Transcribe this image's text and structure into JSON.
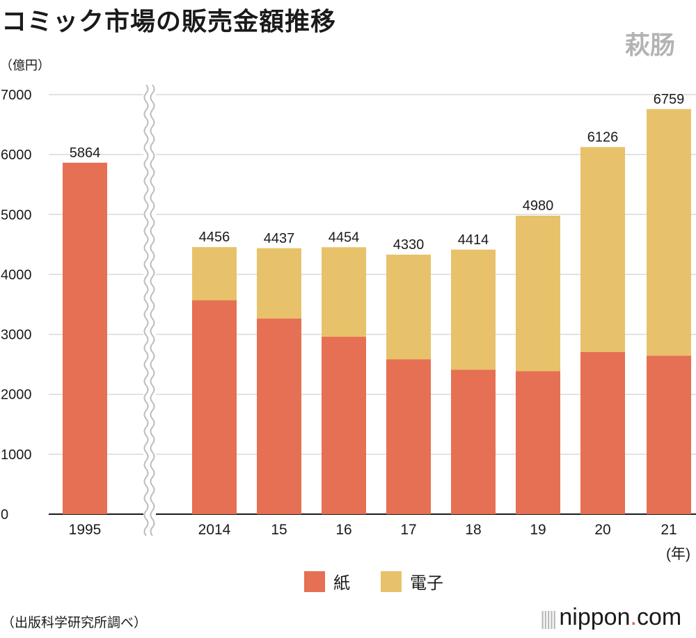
{
  "title": "コミック市場の販売金額推移",
  "watermark": "萩肠",
  "unit_label": "（億円）",
  "year_unit_label": "(年)",
  "source": "（出版科学研究所調べ）",
  "brand": {
    "name": "nippon",
    "dot": ".",
    "suffix": "com"
  },
  "colors": {
    "paper": "#E67053",
    "digital": "#E8C26A",
    "grid": "#d9d9d9",
    "axis": "#1a1a1a"
  },
  "chart_data": {
    "type": "bar",
    "stacked": true,
    "categories": [
      "1995",
      "2014",
      "15",
      "16",
      "17",
      "18",
      "19",
      "20",
      "21"
    ],
    "series": [
      {
        "name": "紙",
        "values": [
          5864,
          3569,
          3266,
          2960,
          2583,
          2412,
          2387,
          2706,
          2645
        ]
      },
      {
        "name": "電子",
        "values": [
          0,
          887,
          1171,
          1494,
          1747,
          2002,
          2593,
          3420,
          4114
        ]
      }
    ],
    "totals": [
      5864,
      4456,
      4437,
      4454,
      4330,
      4414,
      4980,
      6126,
      6759
    ],
    "yticks": [
      0,
      1000,
      2000,
      3000,
      4000,
      5000,
      6000,
      7000
    ],
    "ylim": [
      0,
      7000
    ],
    "axis_break_after": "1995",
    "legend_position": "bottom-center",
    "grid": true
  }
}
